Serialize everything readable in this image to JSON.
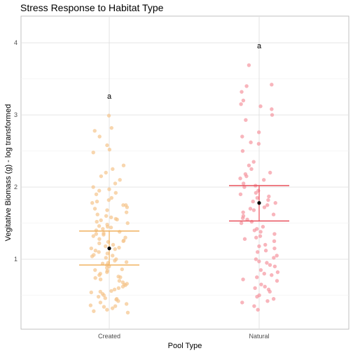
{
  "chart_data": {
    "type": "scatter",
    "title": "Stress Response to Habitat Type",
    "xlabel": "Pool Type",
    "ylabel": "Vegitative Biomass (g) - log transformed",
    "categories": [
      "Created",
      "Natural"
    ],
    "ylim": [
      0.03,
      4.37
    ],
    "yticks": [
      1,
      2,
      3,
      4
    ],
    "grid": true,
    "legend": "none",
    "series": [
      {
        "category": "Created",
        "color": "#f5c58c",
        "summary_color": "#f0b15e",
        "annotation": "a",
        "mean": 1.15,
        "ci": [
          0.92,
          1.39
        ],
        "values": [
          2.99,
          2.82,
          2.78,
          2.7,
          2.58,
          2.52,
          2.48,
          2.3,
          2.25,
          2.2,
          2.15,
          2.1,
          2.05,
          2.0,
          1.97,
          1.95,
          1.92,
          1.9,
          1.85,
          1.82,
          1.8,
          1.78,
          1.75,
          1.72,
          1.7,
          1.68,
          1.65,
          1.62,
          1.6,
          1.58,
          1.56,
          1.54,
          1.52,
          1.5,
          1.48,
          1.46,
          1.44,
          1.42,
          1.4,
          1.38,
          1.36,
          1.34,
          1.32,
          1.3,
          1.28,
          1.26,
          1.24,
          1.22,
          1.2,
          1.18,
          1.16,
          1.14,
          1.12,
          1.1,
          1.08,
          1.06,
          1.04,
          1.02,
          1.0,
          0.98,
          0.96,
          0.94,
          0.92,
          0.9,
          0.88,
          0.86,
          0.84,
          0.82,
          0.8,
          0.78,
          0.76,
          0.74,
          0.72,
          0.7,
          0.68,
          0.66,
          0.64,
          0.62,
          0.6,
          0.58,
          0.56,
          0.54,
          0.52,
          0.5,
          0.48,
          0.46,
          0.44,
          0.42,
          0.4,
          0.38,
          0.36,
          0.34,
          0.32,
          0.3,
          0.28,
          0.26,
          1.45,
          1.25,
          1.05,
          0.95,
          0.85,
          0.75,
          0.65,
          0.55,
          1.15,
          1.35,
          1.55,
          0.45,
          0.35,
          1.75
        ]
      },
      {
        "category": "Natural",
        "color": "#f595a0",
        "summary_color": "#e8505c",
        "annotation": "a",
        "mean": 1.78,
        "ci": [
          1.53,
          2.02
        ],
        "values": [
          3.69,
          3.42,
          3.4,
          3.32,
          3.2,
          3.15,
          3.12,
          3.08,
          3.0,
          2.93,
          2.76,
          2.7,
          2.62,
          2.6,
          2.5,
          2.35,
          2.3,
          2.25,
          2.2,
          2.18,
          2.15,
          2.12,
          2.1,
          2.05,
          2.02,
          2.0,
          1.95,
          1.92,
          1.9,
          1.87,
          1.85,
          1.82,
          1.8,
          1.78,
          1.75,
          1.72,
          1.7,
          1.68,
          1.65,
          1.62,
          1.6,
          1.57,
          1.55,
          1.52,
          1.5,
          1.45,
          1.42,
          1.4,
          1.38,
          1.35,
          1.32,
          1.3,
          1.28,
          1.25,
          1.2,
          1.18,
          1.15,
          1.12,
          1.1,
          1.05,
          1.02,
          1.0,
          0.97,
          0.95,
          0.92,
          0.9,
          0.85,
          0.82,
          0.8,
          0.78,
          0.75,
          0.72,
          0.7,
          0.65,
          0.62,
          0.6,
          0.58,
          0.55,
          0.5,
          0.48,
          0.45,
          0.42,
          0.4,
          0.35,
          0.3
        ]
      }
    ]
  }
}
